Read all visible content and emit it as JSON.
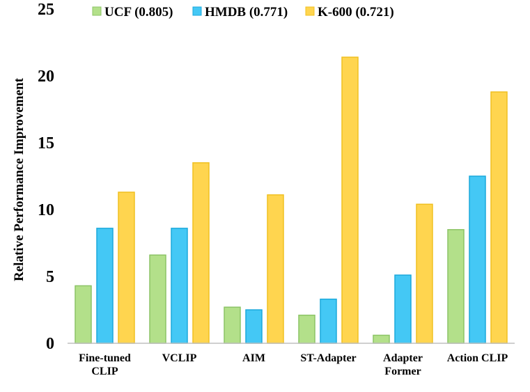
{
  "chart_data": {
    "type": "bar",
    "title": "",
    "xlabel": "",
    "ylabel": "Relative Performance Improvement",
    "ylim": [
      0,
      25
    ],
    "yticks": [
      "0",
      "5",
      "10",
      "15",
      "20",
      "25"
    ],
    "grid": false,
    "legend_position": "top",
    "categories": [
      [
        "Fine-tuned",
        "CLIP"
      ],
      [
        "VCLIP"
      ],
      [
        "AIM"
      ],
      [
        "ST-Adapter"
      ],
      [
        "Adapter",
        "Former"
      ],
      [
        "Action CLIP"
      ]
    ],
    "series": [
      {
        "name": "UCF (0.805)",
        "color": "#b3e08a",
        "stroke": "#8cc466",
        "values": [
          4.3,
          6.6,
          2.7,
          2.1,
          0.6,
          8.5
        ]
      },
      {
        "name": "HMDB (0.771)",
        "color": "#44c8f5",
        "stroke": "#1ba9dc",
        "values": [
          8.6,
          8.6,
          2.5,
          3.3,
          5.1,
          12.5
        ]
      },
      {
        "name": "K-600 (0.721)",
        "color": "#ffd54f",
        "stroke": "#f0c020",
        "values": [
          11.3,
          13.5,
          11.1,
          21.4,
          10.4,
          18.8
        ]
      }
    ]
  }
}
